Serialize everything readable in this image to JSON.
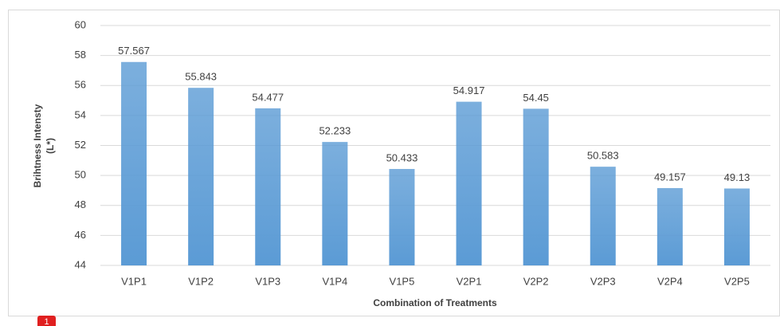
{
  "chart_data": {
    "type": "bar",
    "xlabel": "Combination of Treatments",
    "ylabel": [
      "Brihtness Intensty",
      "(L*)"
    ],
    "categories": [
      "V1P1",
      "V1P2",
      "V1P3",
      "V1P4",
      "V1P5",
      "V2P1",
      "V2P2",
      "V2P3",
      "V2P4",
      "V2P5"
    ],
    "values": [
      57.567,
      55.843,
      54.477,
      52.233,
      50.433,
      54.917,
      54.45,
      50.583,
      49.157,
      49.13
    ],
    "color": "#5b9bd5",
    "ylim": [
      44,
      60
    ],
    "yticks": [
      44,
      46,
      48,
      50,
      52,
      54,
      56,
      58,
      60
    ],
    "grid": true,
    "annotations": [
      "1"
    ]
  }
}
